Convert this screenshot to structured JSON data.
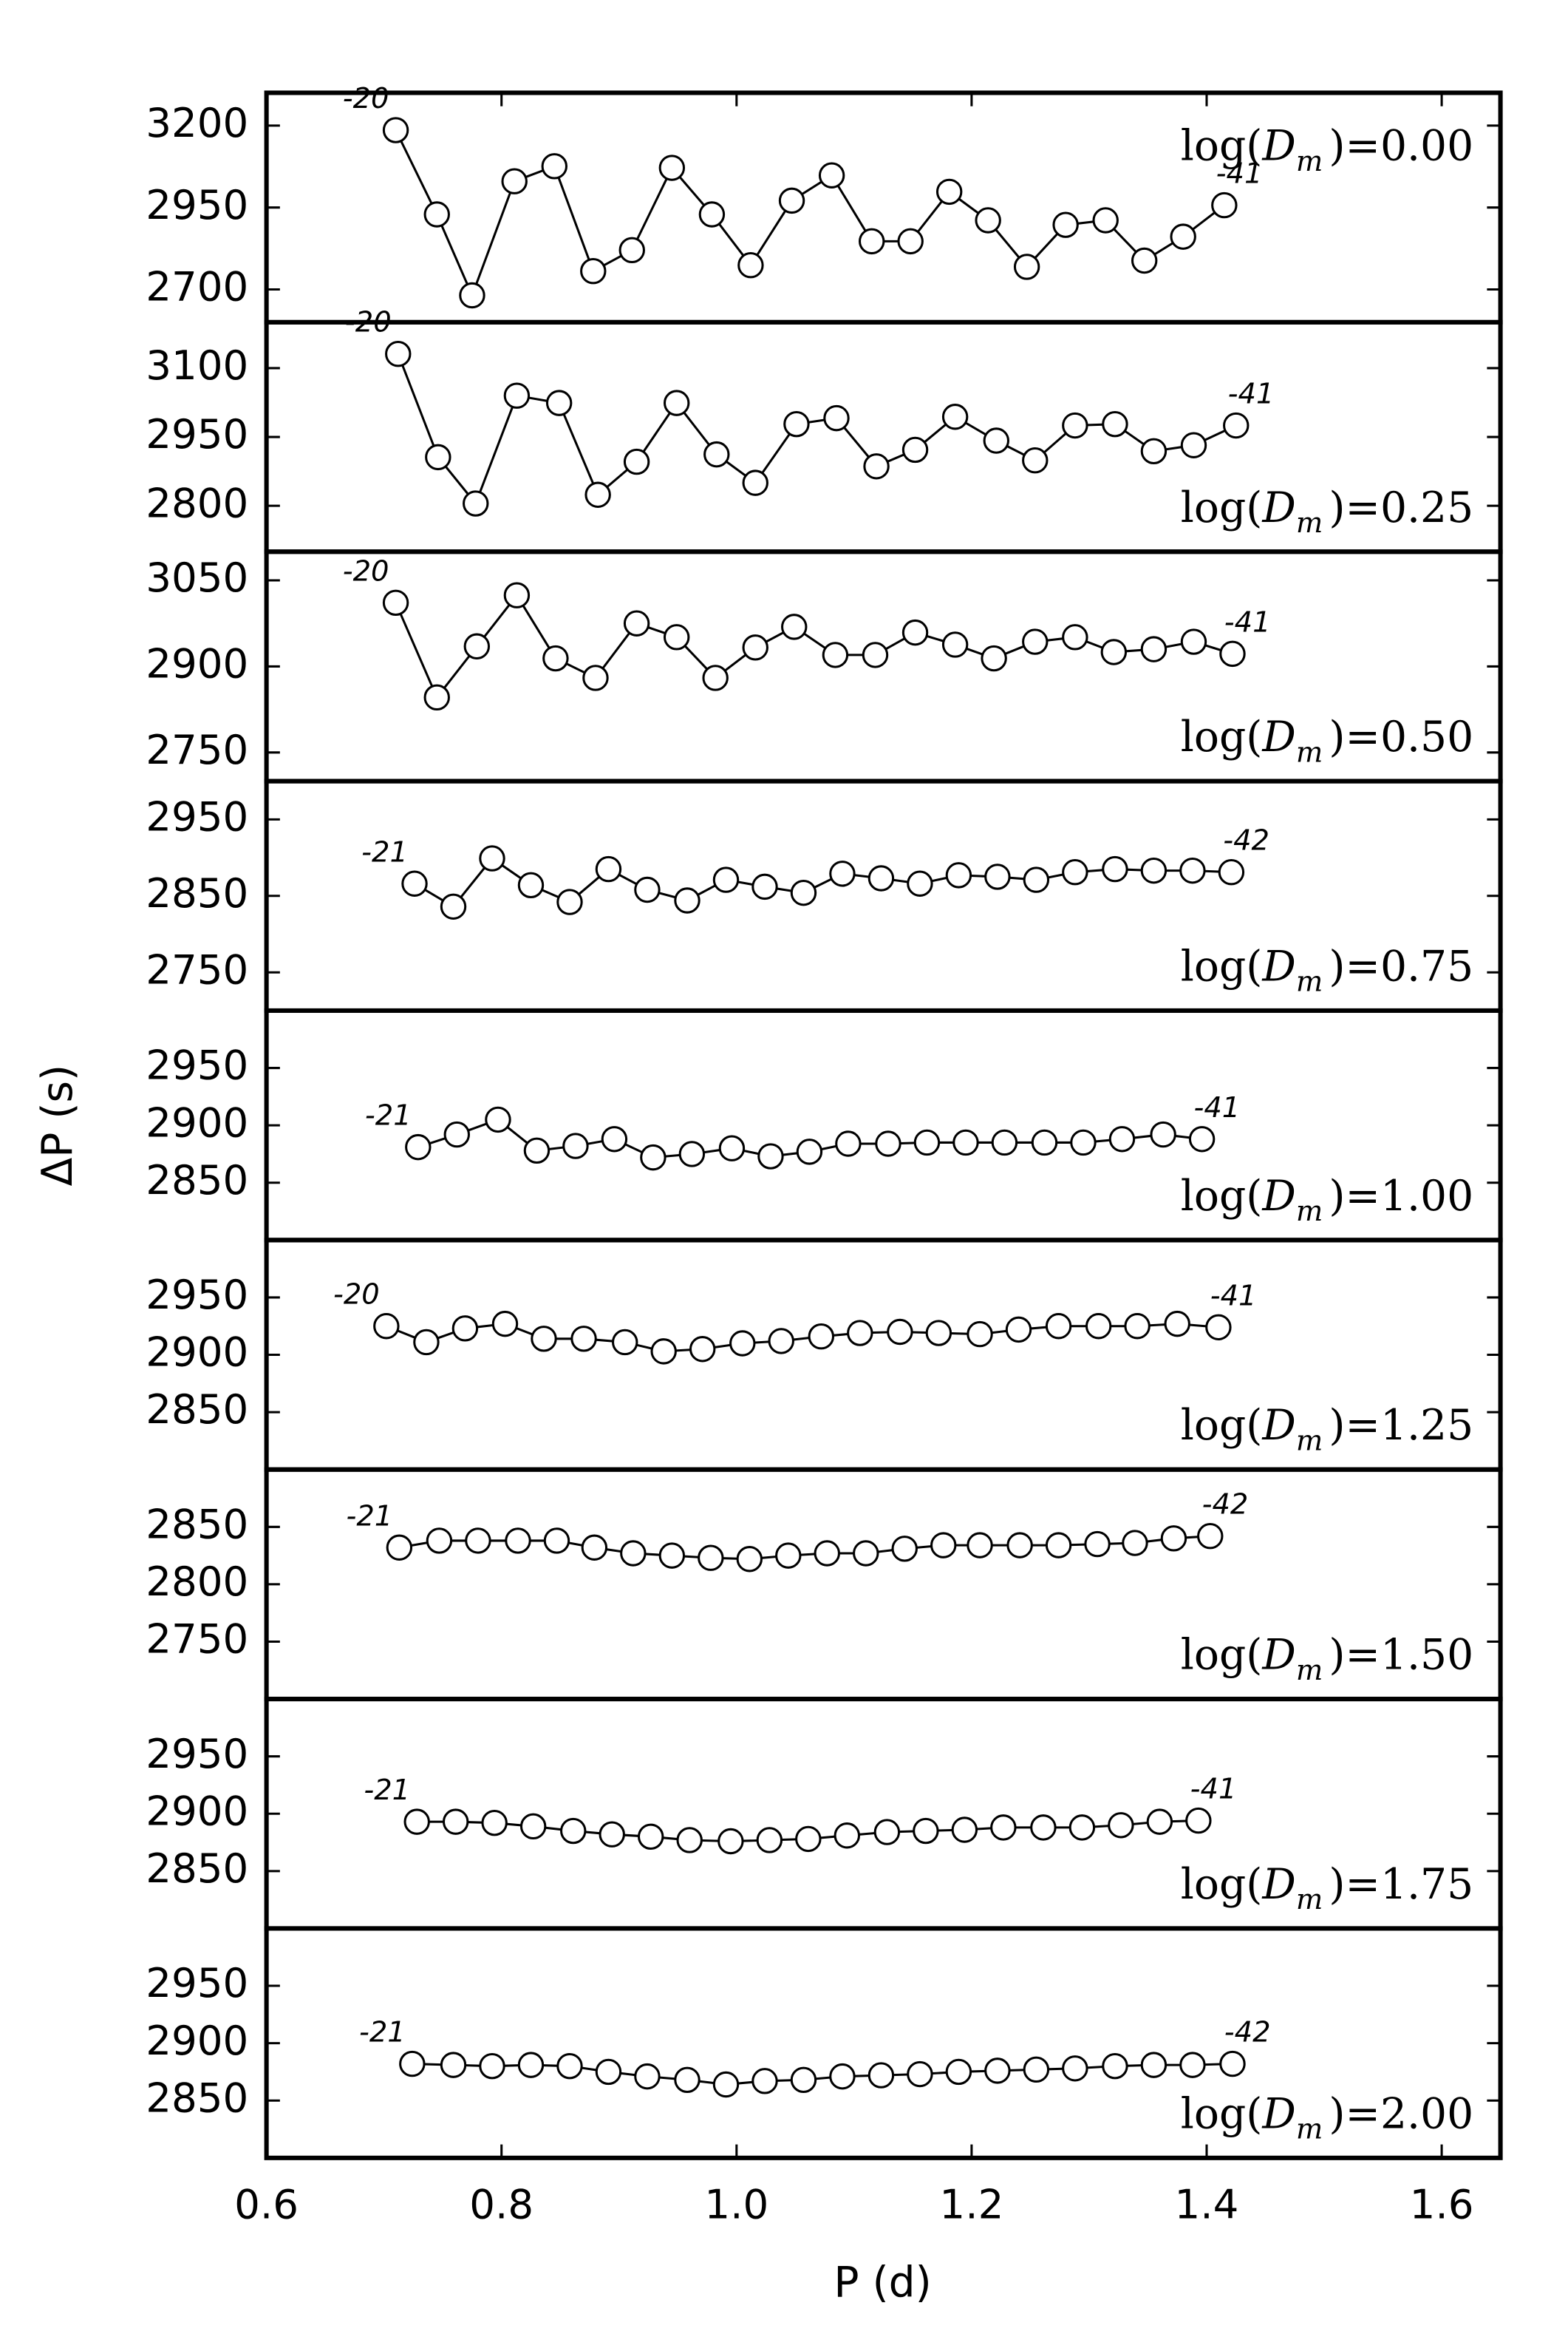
{
  "chart_data": {
    "type": "line",
    "color": "#000000",
    "ylabel": "ΔP (s)",
    "xlabel": "P (d)",
    "xlim": [
      0.6,
      1.65
    ],
    "xticks": [
      0.6,
      0.8,
      {
        "value": 1,
        "label": "1.0"
      },
      1.2,
      1.4,
      1.6
    ],
    "panels": [
      {
        "label": "log(D_m)=0.00",
        "label_loc": "upper right",
        "ylim": [
          2600,
          3300
        ],
        "yticks": [
          2700,
          2950,
          3200
        ],
        "start_label": "-20",
        "end_label": "-41",
        "x": [
          0.71,
          0.745,
          0.775,
          0.811,
          0.845,
          0.878,
          0.911,
          0.945,
          0.979,
          1.012,
          1.047,
          1.081,
          1.115,
          1.148,
          1.181,
          1.214,
          1.247,
          1.28,
          1.314,
          1.347,
          1.38,
          1.415
        ],
        "values": [
          3186,
          2929,
          2682,
          3030,
          3076,
          2756,
          2820,
          3071,
          2929,
          2774,
          2971,
          3048,
          2847,
          2847,
          2998,
          2911,
          2769,
          2897,
          2911,
          2788,
          2861,
          2957
        ]
      },
      {
        "label": "log(D_m)=0.25",
        "label_loc": "lower right",
        "ylim": [
          2700,
          3200
        ],
        "yticks": [
          2800,
          2950,
          3100
        ],
        "start_label": "-20",
        "end_label": "-41",
        "x": [
          0.712,
          0.746,
          0.778,
          0.813,
          0.849,
          0.882,
          0.915,
          0.949,
          0.983,
          1.016,
          1.051,
          1.085,
          1.119,
          1.152,
          1.186,
          1.221,
          1.254,
          1.288,
          1.322,
          1.355,
          1.389,
          1.425
        ],
        "values": [
          3131,
          2906,
          2805,
          3040,
          3024,
          2824,
          2896,
          3024,
          2912,
          2850,
          2978,
          2991,
          2886,
          2922,
          2994,
          2942,
          2899,
          2975,
          2978,
          2919,
          2932,
          2975
        ]
      },
      {
        "label": "log(D_m)=0.50",
        "label_loc": "lower right",
        "ylim": [
          2700,
          3100
        ],
        "yticks": [
          2750,
          2900,
          3050
        ],
        "start_label": "-20",
        "end_label": "-41",
        "x": [
          0.71,
          0.745,
          0.779,
          0.813,
          0.846,
          0.88,
          0.915,
          0.949,
          0.982,
          1.016,
          1.049,
          1.084,
          1.118,
          1.152,
          1.186,
          1.219,
          1.254,
          1.288,
          1.321,
          1.355,
          1.389,
          1.422
        ],
        "values": [
          3011,
          2846,
          2935,
          3024,
          2914,
          2880,
          2975,
          2951,
          2880,
          2933,
          2969,
          2920,
          2920,
          2959,
          2938,
          2914,
          2943,
          2951,
          2925,
          2930,
          2943,
          2922
        ]
      },
      {
        "label": "log(D_m)=0.75",
        "label_loc": "lower right",
        "ylim": [
          2700,
          3000
        ],
        "yticks": [
          2750,
          2850,
          2950
        ],
        "start_label": "-21",
        "end_label": "-42",
        "x": [
          0.726,
          0.759,
          0.792,
          0.825,
          0.858,
          0.891,
          0.924,
          0.958,
          0.991,
          1.024,
          1.057,
          1.09,
          1.123,
          1.156,
          1.189,
          1.222,
          1.255,
          1.288,
          1.322,
          1.355,
          1.388,
          1.421
        ],
        "values": [
          2866,
          2836,
          2899,
          2864,
          2842,
          2885,
          2858,
          2844,
          2871,
          2862,
          2854,
          2879,
          2873,
          2866,
          2877,
          2875,
          2871,
          2881,
          2885,
          2883,
          2883,
          2881
        ]
      },
      {
        "label": "log(D_m)=1.00",
        "label_loc": "lower right",
        "ylim": [
          2800,
          3000
        ],
        "yticks": [
          2850,
          2900,
          2950
        ],
        "start_label": "-21",
        "end_label": "-41",
        "x": [
          0.729,
          0.762,
          0.797,
          0.83,
          0.863,
          0.896,
          0.929,
          0.962,
          0.996,
          1.029,
          1.062,
          1.095,
          1.129,
          1.162,
          1.195,
          1.228,
          1.262,
          1.295,
          1.328,
          1.363,
          1.396
        ],
        "values": [
          2881,
          2892,
          2905,
          2878,
          2882,
          2888,
          2872,
          2875,
          2880,
          2873,
          2877,
          2884,
          2884,
          2885,
          2885,
          2885,
          2885,
          2885,
          2888,
          2892,
          2888
        ]
      },
      {
        "label": "log(D_m)=1.25",
        "label_loc": "lower right",
        "ylim": [
          2800,
          3000
        ],
        "yticks": [
          2850,
          2900,
          2950
        ],
        "start_label": "-20",
        "end_label": "-41",
        "x": [
          0.702,
          0.736,
          0.769,
          0.803,
          0.836,
          0.87,
          0.905,
          0.938,
          0.971,
          1.005,
          1.038,
          1.072,
          1.105,
          1.139,
          1.172,
          1.207,
          1.24,
          1.274,
          1.308,
          1.341,
          1.375,
          1.41
        ],
        "values": [
          2925,
          2911,
          2923,
          2927,
          2914,
          2914,
          2911,
          2903,
          2905,
          2910,
          2912,
          2916,
          2919,
          2920,
          2919,
          2918,
          2922,
          2925,
          2925,
          2925,
          2927,
          2924
        ]
      },
      {
        "label": "log(D_m)=1.50",
        "label_loc": "lower right",
        "ylim": [
          2700,
          2900
        ],
        "yticks": [
          2750,
          2800,
          2850
        ],
        "start_label": "-21",
        "end_label": "-42",
        "x": [
          0.713,
          0.747,
          0.78,
          0.814,
          0.847,
          0.879,
          0.912,
          0.945,
          0.978,
          1.011,
          1.044,
          1.077,
          1.11,
          1.143,
          1.176,
          1.207,
          1.241,
          1.274,
          1.307,
          1.339,
          1.372,
          1.403
        ],
        "values": [
          2832,
          2838,
          2838,
          2838,
          2838,
          2832,
          2827,
          2825,
          2823,
          2822,
          2825,
          2827,
          2827,
          2831,
          2834,
          2834,
          2834,
          2834,
          2835,
          2836,
          2840,
          2842
        ]
      },
      {
        "label": "log(D_m)=1.75",
        "label_loc": "lower right",
        "ylim": [
          2800,
          3000
        ],
        "yticks": [
          2850,
          2900,
          2950
        ],
        "start_label": "-21",
        "end_label": "-41",
        "x": [
          0.728,
          0.761,
          0.794,
          0.827,
          0.861,
          0.894,
          0.927,
          0.96,
          0.995,
          1.028,
          1.061,
          1.094,
          1.128,
          1.161,
          1.194,
          1.227,
          1.261,
          1.294,
          1.327,
          1.36,
          1.393
        ],
        "values": [
          2893,
          2893,
          2892,
          2889,
          2885,
          2882,
          2880,
          2877,
          2876,
          2877,
          2878,
          2881,
          2884,
          2885,
          2886,
          2888,
          2888,
          2888,
          2890,
          2893,
          2894
        ]
      },
      {
        "label": "log(D_m)=2.00",
        "label_loc": "lower right",
        "ylim": [
          2800,
          3000
        ],
        "yticks": [
          2850,
          2900,
          2950
        ],
        "start_label": "-21",
        "end_label": "-42",
        "x": [
          0.724,
          0.759,
          0.792,
          0.825,
          0.858,
          0.891,
          0.924,
          0.958,
          0.991,
          1.024,
          1.057,
          1.09,
          1.123,
          1.156,
          1.189,
          1.222,
          1.255,
          1.288,
          1.322,
          1.355,
          1.388,
          1.422
        ],
        "values": [
          2882,
          2881,
          2880,
          2881,
          2880,
          2875,
          2871,
          2868,
          2864,
          2867,
          2868,
          2871,
          2872,
          2873,
          2875,
          2876,
          2877,
          2878,
          2880,
          2881,
          2881,
          2882
        ]
      }
    ]
  }
}
